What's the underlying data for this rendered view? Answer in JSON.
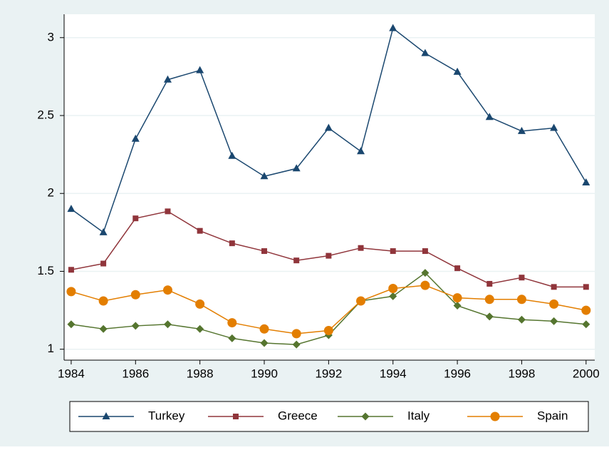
{
  "chart_data": {
    "type": "line",
    "x": [
      1984,
      1985,
      1986,
      1987,
      1988,
      1989,
      1990,
      1991,
      1992,
      1993,
      1994,
      1995,
      1996,
      1997,
      1998,
      1999,
      2000
    ],
    "xlim": [
      1983.78,
      2000.27
    ],
    "xticks": [
      1984,
      1986,
      1988,
      1990,
      1992,
      1994,
      1996,
      1998,
      2000
    ],
    "ylim": [
      0.93,
      3.15
    ],
    "yticks": [
      1,
      1.5,
      2,
      2.5,
      3
    ],
    "grid": true,
    "legend": "bottom",
    "series": [
      {
        "name": "Turkey",
        "color": "#1a476f",
        "marker": "triangle",
        "values": [
          1.9,
          1.75,
          2.35,
          2.73,
          2.79,
          2.24,
          2.11,
          2.16,
          2.42,
          2.27,
          3.06,
          2.9,
          2.78,
          2.49,
          2.4,
          2.42,
          2.07
        ]
      },
      {
        "name": "Greece",
        "color": "#90353b",
        "marker": "square",
        "values": [
          1.51,
          1.55,
          1.84,
          1.885,
          1.76,
          1.68,
          1.63,
          1.57,
          1.6,
          1.65,
          1.63,
          1.63,
          1.52,
          1.42,
          1.46,
          1.4,
          1.4
        ]
      },
      {
        "name": "Italy",
        "color": "#55752f",
        "marker": "diamond",
        "values": [
          1.16,
          1.13,
          1.15,
          1.16,
          1.13,
          1.07,
          1.04,
          1.03,
          1.09,
          1.31,
          1.34,
          1.49,
          1.28,
          1.21,
          1.19,
          1.18,
          1.16
        ]
      },
      {
        "name": "Spain",
        "color": "#e37e00",
        "marker": "circle",
        "values": [
          1.37,
          1.31,
          1.35,
          1.38,
          1.29,
          1.17,
          1.13,
          1.1,
          1.12,
          1.31,
          1.39,
          1.41,
          1.33,
          1.32,
          1.32,
          1.29,
          1.25
        ]
      }
    ]
  }
}
